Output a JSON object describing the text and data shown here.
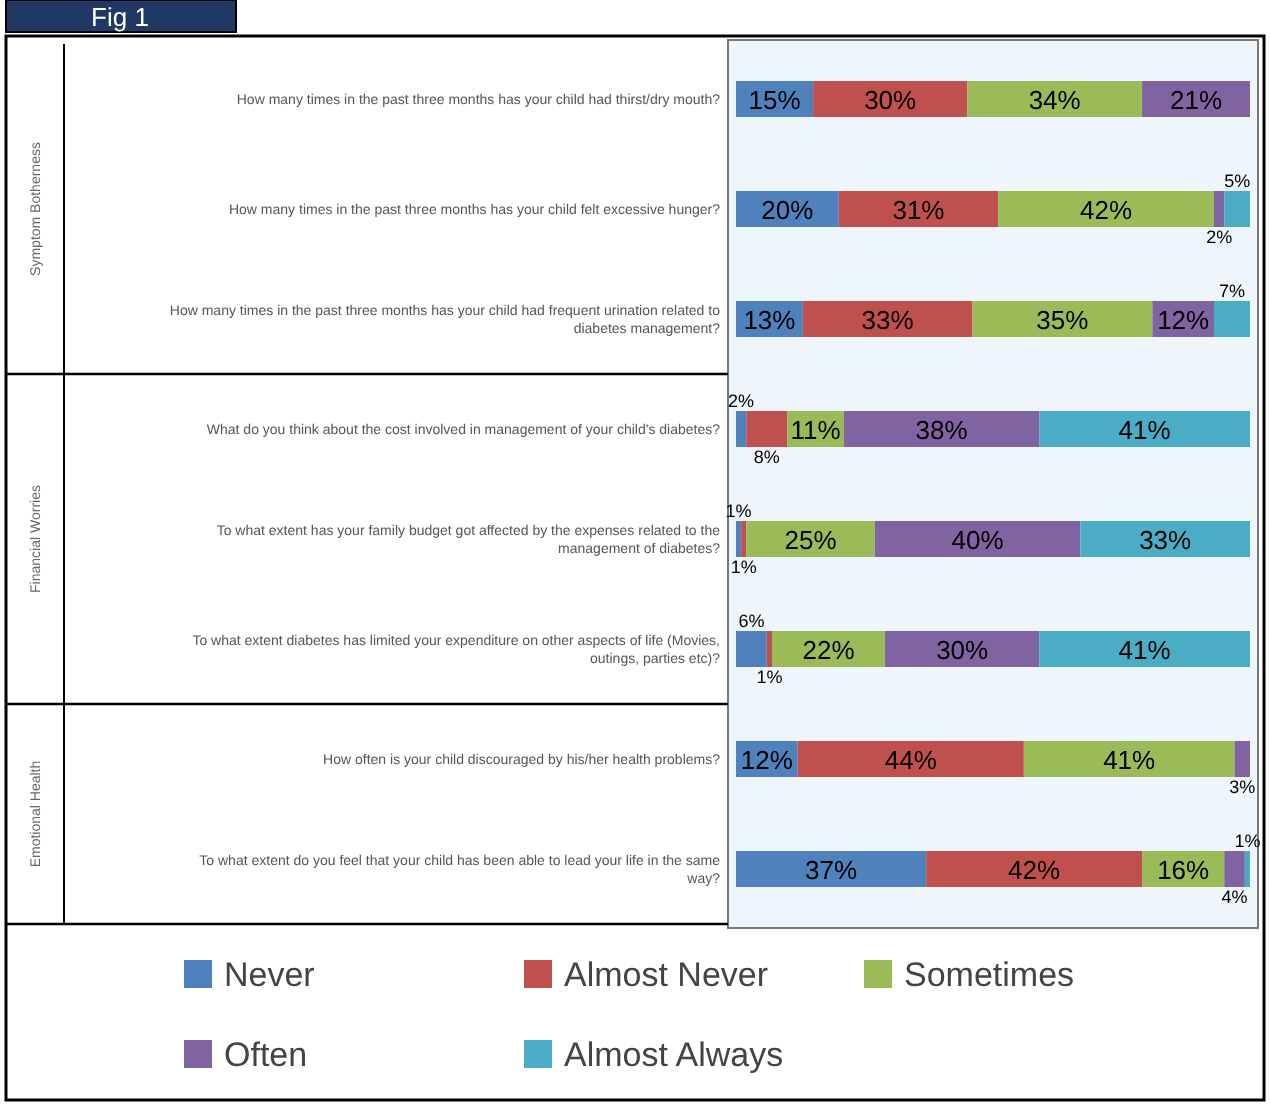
{
  "chart_data": {
    "type": "bar",
    "orientation": "horizontal",
    "stacked": true,
    "title": "Fig 1",
    "categories": [
      "How many times in the past three months has your child had thirst/dry mouth?",
      "How many times in the past three months has your child felt excessive hunger?",
      "How many times in the past three months has your child had frequent urination related to diabetes management?",
      "What do you think about the cost involved in management of your child's diabetes?",
      "To what extent has your family budget got affected by the expenses related to the management of diabetes?",
      "To what extent diabetes has limited your expenditure on other aspects of life (Movies, outings, parties etc)?",
      "How often is your child discouraged by his/her health problems?",
      "To what extent do you feel that your child has been able to lead your life in the same way?"
    ],
    "annotations": [
      "Symptom Botherness",
      "Financial Worries",
      "Emotional Health"
    ],
    "series": [
      {
        "name": "Never",
        "color": "#4f81bd",
        "values": [
          15,
          20,
          13,
          2,
          1,
          6,
          12,
          37
        ],
        "value_labels": [
          "15%",
          "20%",
          "13%",
          "2%",
          "1%",
          "6%",
          "12%",
          "37%"
        ]
      },
      {
        "name": "Almost Never",
        "color": "#c0504d",
        "values": [
          30,
          31,
          33,
          8,
          1,
          1,
          44,
          42
        ],
        "value_labels": [
          "30%",
          "31%",
          "33%",
          "8%",
          "1%",
          "1%",
          "44%",
          "42%"
        ]
      },
      {
        "name": "Sometimes",
        "color": "#9bbb59",
        "values": [
          34,
          42,
          35,
          11,
          25,
          22,
          41,
          16
        ],
        "value_labels": [
          "34%",
          "42%",
          "35%",
          "11%",
          "25%",
          "22%",
          "41%",
          "16%"
        ]
      },
      {
        "name": "Often",
        "color": "#8064a2",
        "values": [
          21,
          2,
          12,
          38,
          40,
          30,
          3,
          4
        ],
        "value_labels": [
          "21%",
          "2%",
          "12%",
          "38%",
          "40%",
          "30%",
          "3%",
          "4%"
        ]
      },
      {
        "name": "Almost Always",
        "color": "#4bacc6",
        "values": [
          null,
          5,
          7,
          41,
          33,
          41,
          null,
          1
        ],
        "value_labels": [
          null,
          "5%",
          "7%",
          "41%",
          "33%",
          "41%",
          null,
          "1%"
        ]
      }
    ],
    "legend": "bottom",
    "tick_labels": "y"
  }
}
